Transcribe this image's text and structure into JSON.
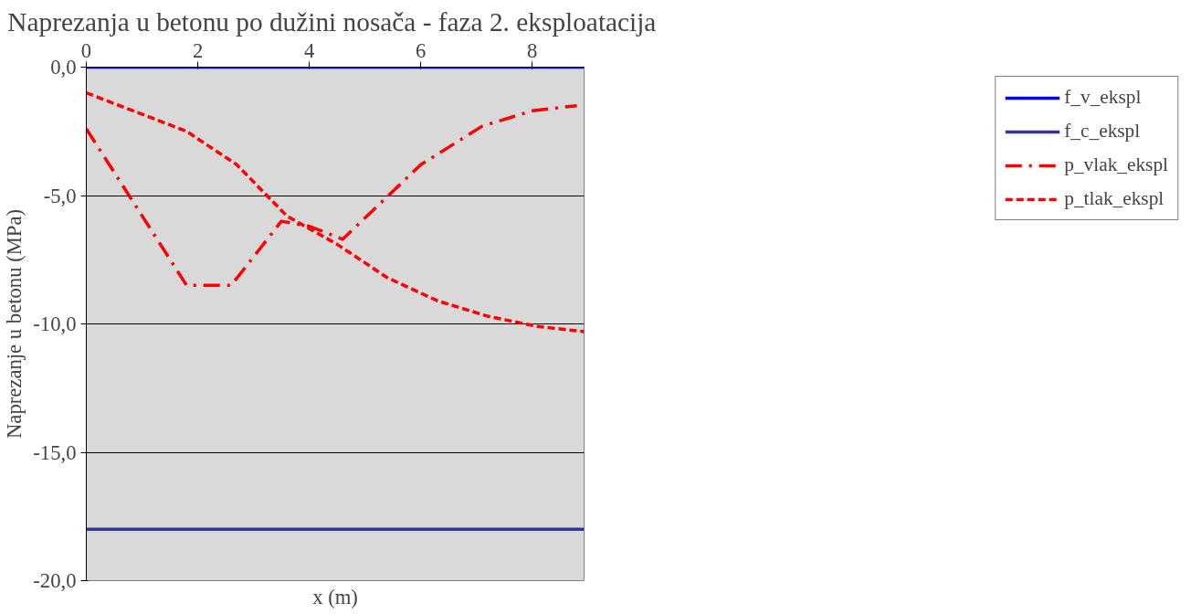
{
  "chart_data": {
    "type": "line",
    "title": "Naprezanja u betonu po dužini nosača - faza  2. eksploatacija",
    "xlabel": "x (m)",
    "ylabel": "Naprezanje u betonu (MPa)",
    "xlim": [
      0,
      8.93
    ],
    "xticks": [
      0,
      2,
      4,
      6,
      8
    ],
    "ylim": [
      -20,
      0
    ],
    "yticks": [
      {
        "value": -20,
        "label": "-20,0"
      },
      {
        "value": -15,
        "label": "-15,0"
      },
      {
        "value": -10,
        "label": "-10,0"
      },
      {
        "value": -5,
        "label": "-5,0"
      },
      {
        "value": 0,
        "label": "0,0"
      }
    ],
    "grid": "y",
    "legend": "right",
    "series": [
      {
        "name": "f_v_ekspl",
        "color": "#0000ff",
        "line_style": "solid",
        "x": [
          0,
          8.93
        ],
        "values": [
          0,
          0
        ]
      },
      {
        "name": "f_c_ekspl",
        "color": "#333399",
        "line_style": "solid",
        "x": [
          0,
          8.93
        ],
        "values": [
          -18,
          -18
        ]
      },
      {
        "name": "p_vlak_ekspl",
        "color": "#ff0000",
        "line_style": "dashdot",
        "x": [
          0,
          1.8,
          2.6,
          3.5,
          4.0,
          4.6,
          6.0,
          7.1,
          8.0,
          8.8
        ],
        "values": [
          -2.4,
          -8.5,
          -8.5,
          -6.0,
          -6.2,
          -6.7,
          -3.8,
          -2.3,
          -1.7,
          -1.5
        ]
      },
      {
        "name": "p_tlak_ekspl",
        "color": "#ff0000",
        "line_style": "dashed",
        "x": [
          0,
          1.8,
          2.7,
          3.6,
          4.5,
          5.4,
          6.3,
          7.2,
          8.1,
          8.93
        ],
        "values": [
          -1.0,
          -2.5,
          -3.8,
          -5.8,
          -6.9,
          -8.2,
          -9.1,
          -9.7,
          -10.1,
          -10.3
        ]
      }
    ]
  }
}
